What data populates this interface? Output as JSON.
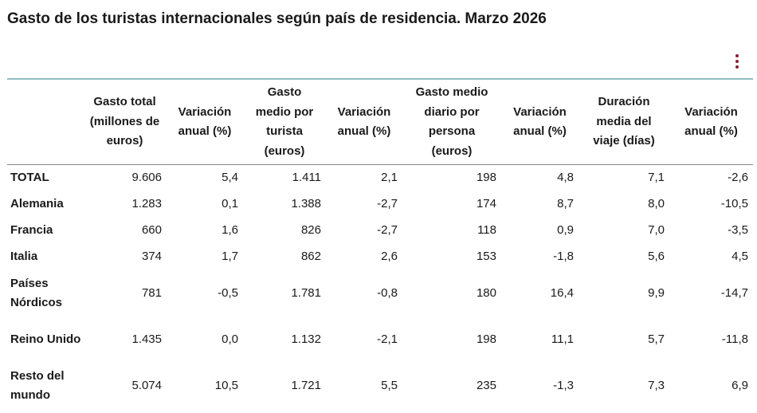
{
  "title": "Gasto de los turistas internacionales según país de residencia. Marzo 2026",
  "menu_icon": "more-vertical-icon",
  "colors": {
    "menu_dots": "#8e1e2d",
    "header_top_rule": "#8fbcc6",
    "header_bottom_rule": "#8a8a8a"
  },
  "table": {
    "headers": [
      "",
      "Gasto total (millones de euros)",
      "Variación anual (%)",
      "Gasto medio por turista (euros)",
      "Variación anual (%)",
      "Gasto medio diario por persona (euros)",
      "Variación anual (%)",
      "Duración media del viaje (días)",
      "Variación anual (%)"
    ],
    "rows": [
      {
        "country": "TOTAL",
        "values": [
          "9.606",
          "5,4",
          "1.411",
          "2,1",
          "198",
          "4,8",
          "7,1",
          "-2,6"
        ]
      },
      {
        "country": "Alemania",
        "values": [
          "1.283",
          "0,1",
          "1.388",
          "-2,7",
          "174",
          "8,7",
          "8,0",
          "-10,5"
        ]
      },
      {
        "country": "Francia",
        "values": [
          "660",
          "1,6",
          "826",
          "-2,7",
          "118",
          "0,9",
          "7,0",
          "-3,5"
        ]
      },
      {
        "country": "Italia",
        "values": [
          "374",
          "1,7",
          "862",
          "2,6",
          "153",
          "-1,8",
          "5,6",
          "4,5"
        ]
      },
      {
        "country": "Países Nórdicos",
        "values": [
          "781",
          "-0,5",
          "1.781",
          "-0,8",
          "180",
          "16,4",
          "9,9",
          "-14,7"
        ]
      },
      {
        "country": "Reino Unido",
        "values": [
          "1.435",
          "0,0",
          "1.132",
          "-2,1",
          "198",
          "11,1",
          "5,7",
          "-11,8"
        ]
      },
      {
        "country": "Resto del mundo",
        "values": [
          "5.074",
          "10,5",
          "1.721",
          "5,5",
          "235",
          "-1,3",
          "7,3",
          "6,9"
        ]
      }
    ]
  }
}
